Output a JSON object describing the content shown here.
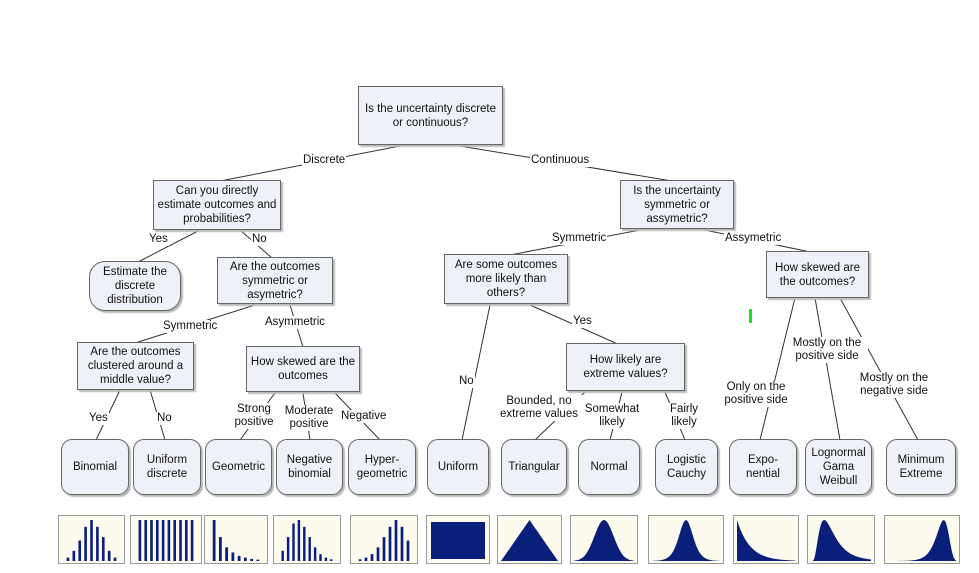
{
  "root_question": "Is the uncertainty discrete or continuous?",
  "discrete_branch": {
    "label": "Discrete",
    "question": "Can you directly estimate outcomes and probabilities?",
    "yes_label": "Yes",
    "no_label": "No",
    "estimate_leaf": "Estimate the discrete distribution",
    "symmetry_question": "Are the outcomes symmetric or asymetric?",
    "symmetric_label": "Symmetric",
    "asymmetric_label": "Asymmetric",
    "clustered_question": "Are the outcomes clustered around a middle value?",
    "clustered_yes": "Yes",
    "clustered_no": "No",
    "skew_question": "How skewed are the outcomes",
    "strong_positive": "Strong positive",
    "moderate_positive": "Moderate positive",
    "negative": "Negative"
  },
  "continuous_branch": {
    "label": "Continuous",
    "question": "Is the uncertainty symmetric or assymetric?",
    "symmetric_label": "Symmetric",
    "asymmetric_label": "Assymetric",
    "likely_question": "Are some outcomes more likely than others?",
    "no_label": "No",
    "yes_label": "Yes",
    "extreme_question": "How likely are extreme values?",
    "bounded": "Bounded, no extreme values",
    "somewhat_likely": "Somewhat likely",
    "fairly_likely": "Fairly likely",
    "skew_question": "How skewed are the outcomes?",
    "only_positive": "Only on the positive side",
    "mostly_positive": "Mostly on the positive side",
    "mostly_negative": "Mostly on the negative side"
  },
  "leaves": {
    "binomial": "Binomial",
    "uniform_discrete": "Uniform discrete",
    "geometric": "Geometric",
    "negative_binomial": "Negative binomial",
    "hypergeometric": "Hyper-geometric",
    "uniform": "Uniform",
    "triangular": "Triangular",
    "normal": "Normal",
    "logistic_cauchy": "Logistic Cauchy",
    "exponential": "Expo-nential",
    "lognormal": "Lognormal Gama Weibull",
    "minimum_extreme": "Minimum Extreme"
  },
  "colors": {
    "box_fill": "#eef1f7",
    "thumb_fill": "#fdfaee",
    "dist_fill": "#0a1f7a"
  },
  "thumbnails": [
    {
      "shape": "binomial",
      "bars": [
        1,
        3,
        6,
        10,
        12,
        10,
        7,
        3,
        1
      ]
    },
    {
      "shape": "uniform-bars",
      "bars": [
        10,
        10,
        10,
        10,
        10,
        10,
        10,
        10,
        10,
        10
      ]
    },
    {
      "shape": "geometric",
      "bars": [
        12,
        7,
        4,
        2.5,
        1.5,
        1,
        0.6,
        0.4
      ]
    },
    {
      "shape": "neg-binomial",
      "bars": [
        3,
        7,
        11,
        12,
        10,
        7,
        4,
        2,
        1,
        0.5
      ]
    },
    {
      "shape": "hypergeometric",
      "bars": [
        0.5,
        1,
        2,
        4,
        7,
        10,
        12,
        10,
        6
      ]
    },
    {
      "shape": "uniform"
    },
    {
      "shape": "triangular"
    },
    {
      "shape": "normal"
    },
    {
      "shape": "logistic"
    },
    {
      "shape": "exponential"
    },
    {
      "shape": "lognormal"
    },
    {
      "shape": "min-extreme"
    }
  ]
}
